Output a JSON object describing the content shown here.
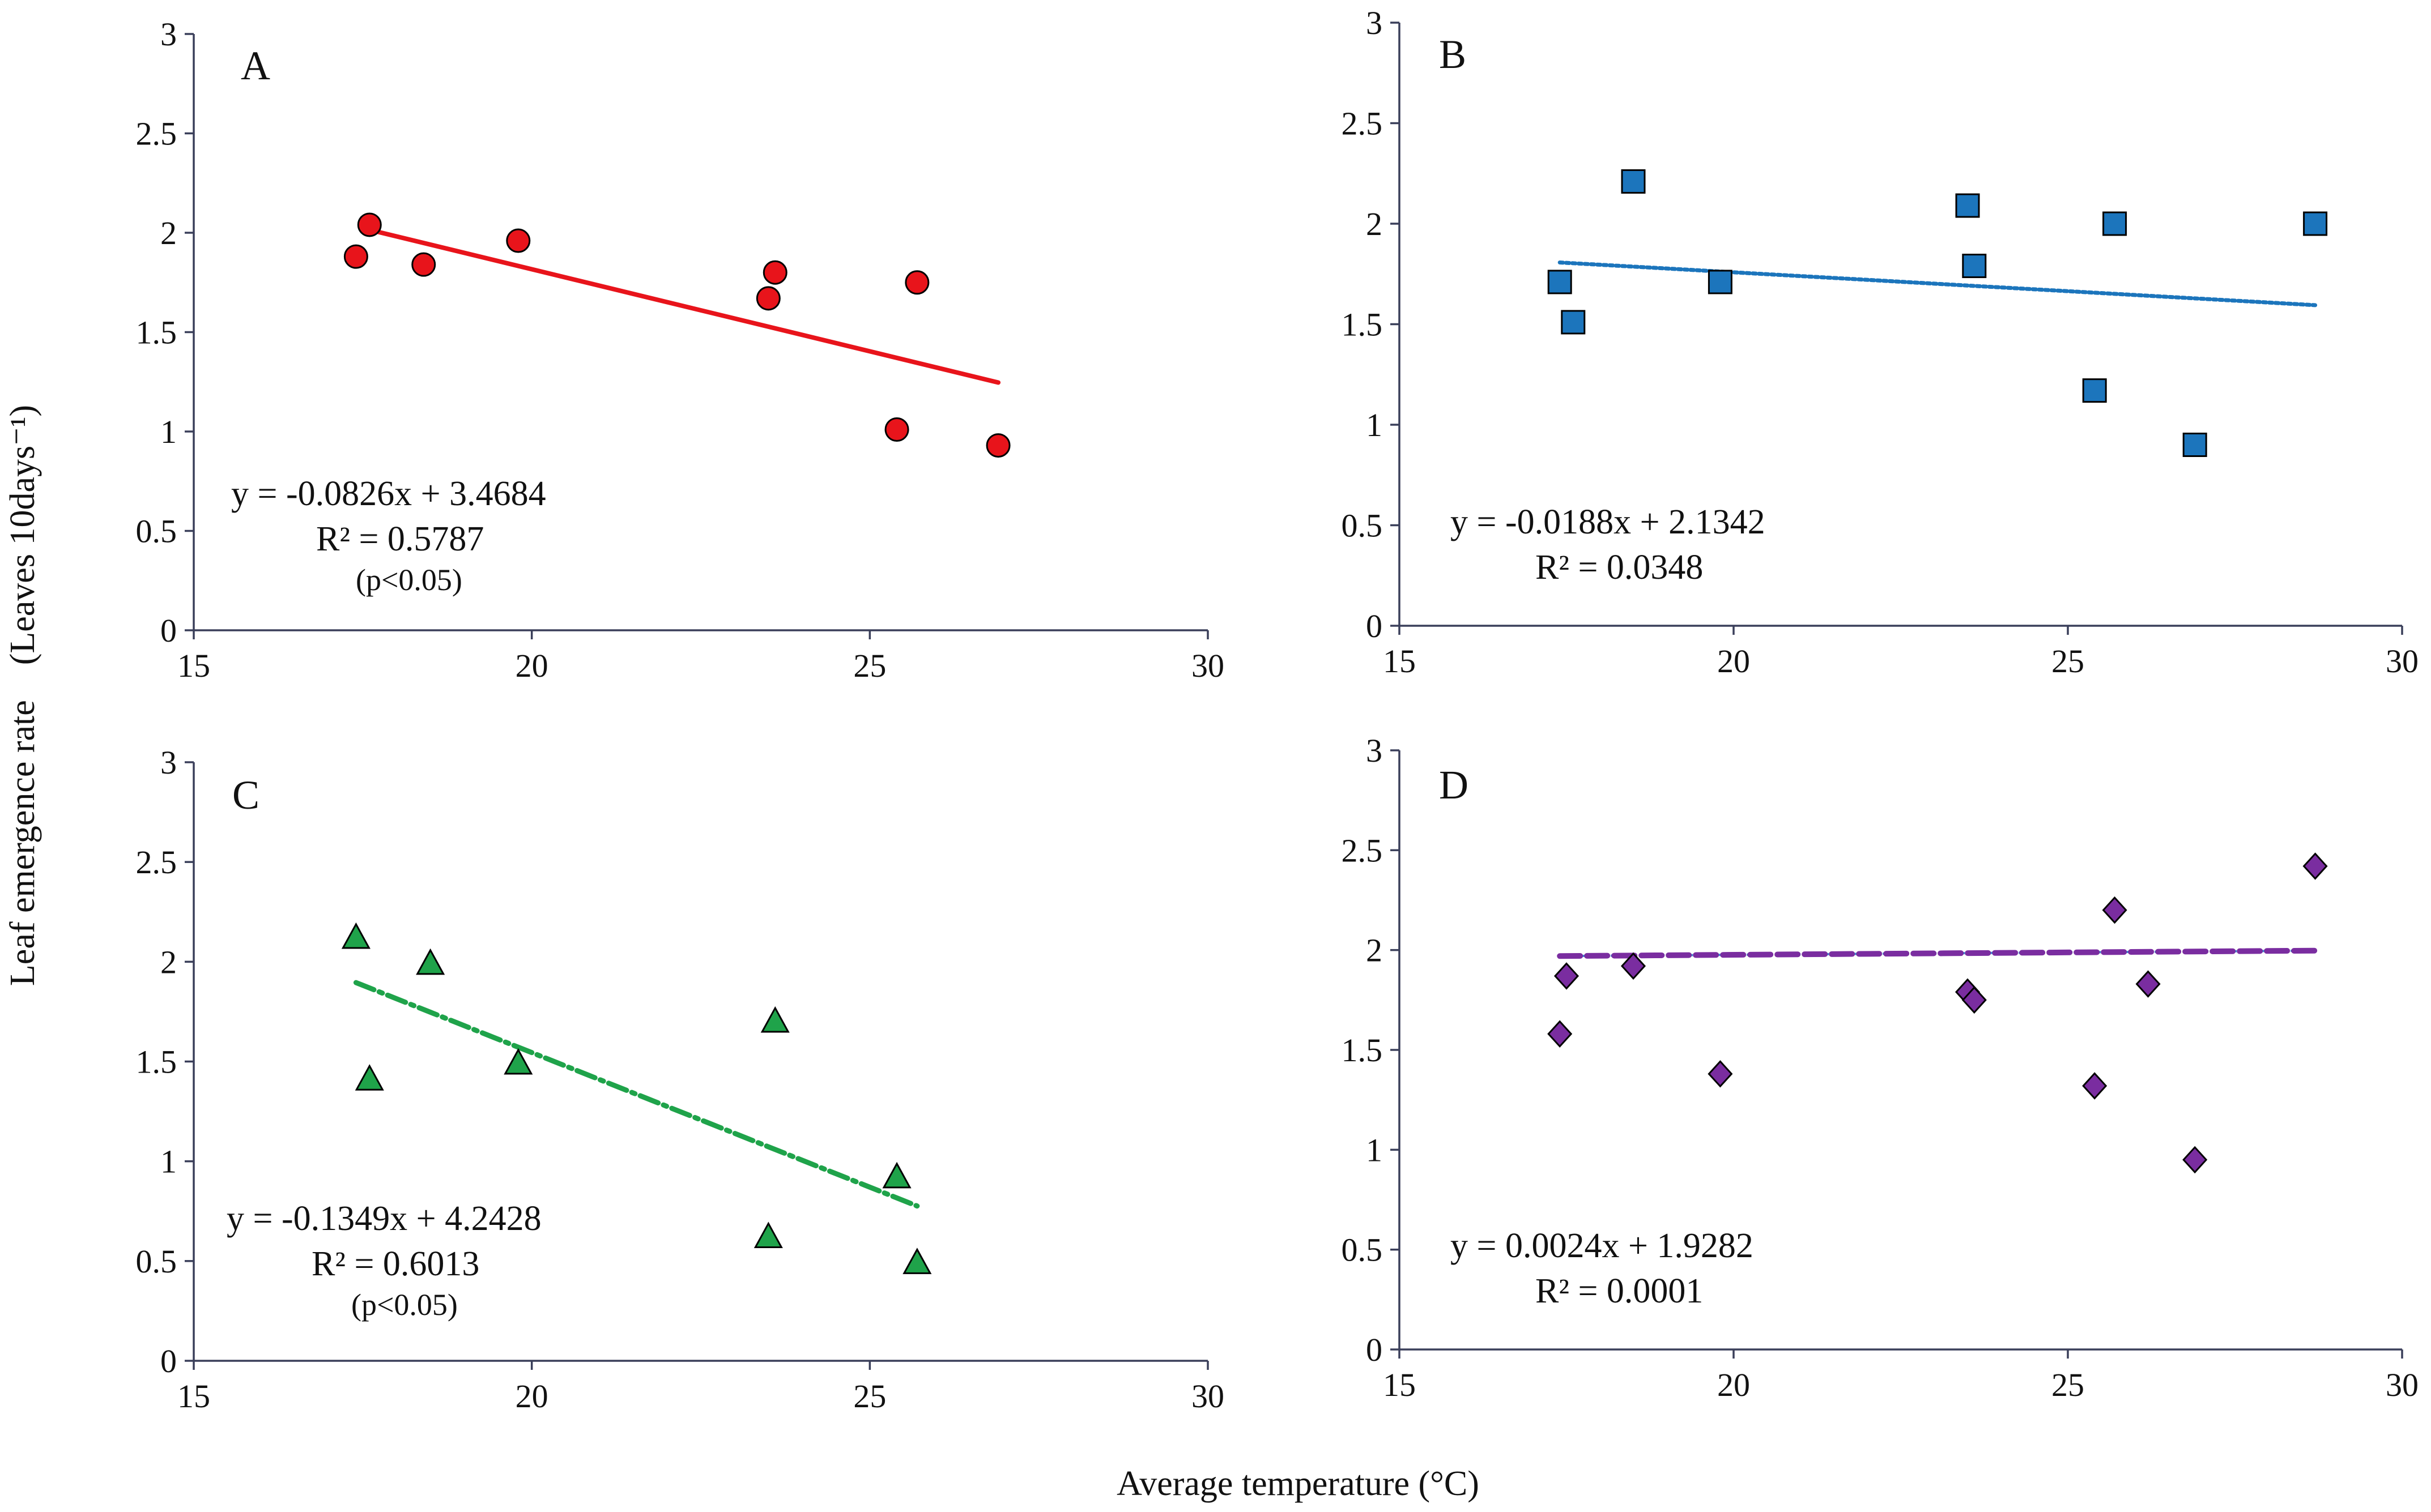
{
  "figure": {
    "ylabel": "Leaf emergence rate　(Leaves 10days⁻¹)",
    "xlabel": "Average temperature (°C)"
  },
  "chart_data": [
    {
      "type": "scatter",
      "panel": "A",
      "xlim": [
        15,
        30
      ],
      "ylim": [
        0,
        3
      ],
      "xticks": [
        "15",
        "20",
        "25",
        "30"
      ],
      "yticks": [
        "0",
        "0.5",
        "1",
        "1.5",
        "2",
        "2.5",
        "3"
      ],
      "marker": "circle",
      "color": "#e8141b",
      "points": [
        {
          "x": 17.4,
          "y": 1.88
        },
        {
          "x": 17.6,
          "y": 2.04
        },
        {
          "x": 18.4,
          "y": 1.84
        },
        {
          "x": 19.8,
          "y": 1.96
        },
        {
          "x": 23.5,
          "y": 1.67
        },
        {
          "x": 23.6,
          "y": 1.8
        },
        {
          "x": 25.4,
          "y": 1.01
        },
        {
          "x": 25.7,
          "y": 1.75
        },
        {
          "x": 26.9,
          "y": 0.93
        }
      ],
      "trendline": {
        "x_start": 17.6,
        "x_end": 26.9,
        "slope": -0.0826,
        "intercept": 3.4684,
        "style": "solid",
        "color": "#e8141b"
      },
      "equation": "y = -0.0826x + 3.4684",
      "r2": "R² = 0.5787",
      "pvalue": "(p<0.05)"
    },
    {
      "type": "scatter",
      "panel": "B",
      "xlim": [
        15,
        30
      ],
      "ylim": [
        0,
        3
      ],
      "xticks": [
        "15",
        "20",
        "25",
        "30"
      ],
      "yticks": [
        "0",
        "0.5",
        "1",
        "1.5",
        "2",
        "2.5",
        "3"
      ],
      "marker": "square",
      "color": "#1c75bc",
      "points": [
        {
          "x": 17.4,
          "y": 1.71
        },
        {
          "x": 17.6,
          "y": 1.51
        },
        {
          "x": 18.5,
          "y": 2.21
        },
        {
          "x": 19.8,
          "y": 1.71
        },
        {
          "x": 23.5,
          "y": 2.09
        },
        {
          "x": 23.6,
          "y": 1.79
        },
        {
          "x": 25.4,
          "y": 1.17
        },
        {
          "x": 25.7,
          "y": 2.0
        },
        {
          "x": 26.9,
          "y": 0.9
        },
        {
          "x": 28.7,
          "y": 2.0
        }
      ],
      "trendline": {
        "x_start": 17.4,
        "x_end": 28.7,
        "slope": -0.0188,
        "intercept": 2.1342,
        "style": "dotted",
        "color": "#1c75bc"
      },
      "equation": "y = -0.0188x + 2.1342",
      "r2": "R² = 0.0348",
      "pvalue": ""
    },
    {
      "type": "scatter",
      "panel": "C",
      "xlim": [
        15,
        30
      ],
      "ylim": [
        0,
        3
      ],
      "xticks": [
        "15",
        "20",
        "25",
        "30"
      ],
      "yticks": [
        "0",
        "0.5",
        "1",
        "1.5",
        "2",
        "2.5",
        "3"
      ],
      "marker": "triangle",
      "color": "#1fa34a",
      "points": [
        {
          "x": 17.4,
          "y": 2.12
        },
        {
          "x": 17.6,
          "y": 1.41
        },
        {
          "x": 18.5,
          "y": 1.99
        },
        {
          "x": 19.8,
          "y": 1.49
        },
        {
          "x": 23.5,
          "y": 0.62
        },
        {
          "x": 23.6,
          "y": 1.7
        },
        {
          "x": 25.4,
          "y": 0.92
        },
        {
          "x": 25.7,
          "y": 0.49
        }
      ],
      "trendline": {
        "x_start": 17.4,
        "x_end": 25.7,
        "slope": -0.1349,
        "intercept": 4.2428,
        "style": "dashdot",
        "color": "#1fa34a"
      },
      "equation": "y = -0.1349x + 4.2428",
      "r2": "R² = 0.6013",
      "pvalue": "(p<0.05)"
    },
    {
      "type": "scatter",
      "panel": "D",
      "xlim": [
        15,
        30
      ],
      "ylim": [
        0,
        3
      ],
      "xticks": [
        "15",
        "20",
        "25",
        "30"
      ],
      "yticks": [
        "0",
        "0.5",
        "1",
        "1.5",
        "2",
        "2.5",
        "3"
      ],
      "marker": "diamond",
      "color": "#7a2da0",
      "points": [
        {
          "x": 17.4,
          "y": 1.58
        },
        {
          "x": 17.5,
          "y": 1.87
        },
        {
          "x": 18.5,
          "y": 1.92
        },
        {
          "x": 19.8,
          "y": 1.38
        },
        {
          "x": 23.5,
          "y": 1.79
        },
        {
          "x": 23.6,
          "y": 1.75
        },
        {
          "x": 25.4,
          "y": 1.32
        },
        {
          "x": 25.7,
          "y": 2.2
        },
        {
          "x": 26.2,
          "y": 1.83
        },
        {
          "x": 26.9,
          "y": 0.95
        },
        {
          "x": 28.7,
          "y": 2.42
        }
      ],
      "trendline": {
        "x_start": 17.4,
        "x_end": 28.7,
        "slope": 0.0024,
        "intercept": 1.9282,
        "style": "dashed",
        "color": "#7a2da0",
        "underlay_color": "#3a8fd6"
      },
      "equation": "y = 0.0024x + 1.9282",
      "r2": "R² = 0.0001",
      "pvalue": ""
    }
  ]
}
